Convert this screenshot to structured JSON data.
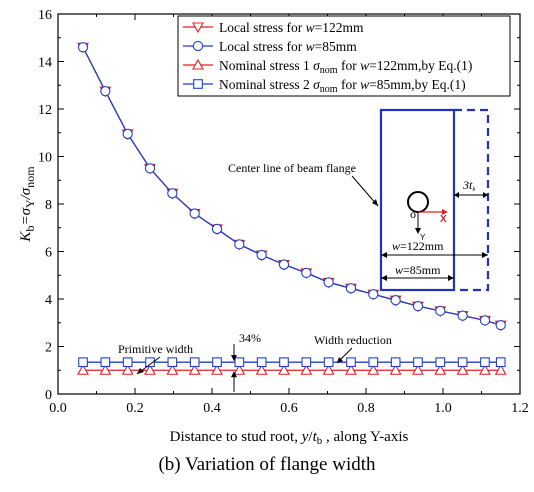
{
  "chart_data": {
    "type": "line",
    "xlabel": "Distance to stud root, y/t_b , along Y-axis",
    "ylabel": "K_b=σ_Y/σ_nom",
    "xlim": [
      0.0,
      1.2
    ],
    "ylim": [
      0,
      16
    ],
    "x_ticks": [
      "0.0",
      "0.2",
      "0.4",
      "0.6",
      "0.8",
      "1.0",
      "1.2"
    ],
    "y_ticks": [
      "0",
      "2",
      "4",
      "6",
      "8",
      "10",
      "12",
      "14",
      "16"
    ],
    "grid": false,
    "legend_position": "top-right",
    "x": [
      0.065,
      0.123,
      0.181,
      0.239,
      0.297,
      0.355,
      0.413,
      0.471,
      0.529,
      0.587,
      0.645,
      0.703,
      0.761,
      0.819,
      0.877,
      0.935,
      0.993,
      1.051,
      1.109,
      1.15
    ],
    "series": [
      {
        "name": "Local stress for w=122mm",
        "marker": "triangle-down",
        "color": "#e02020",
        "values": [
          14.6,
          12.75,
          10.95,
          9.5,
          8.45,
          7.6,
          6.95,
          6.3,
          5.85,
          5.45,
          5.1,
          4.7,
          4.45,
          4.2,
          3.95,
          3.7,
          3.5,
          3.3,
          3.1,
          2.9
        ]
      },
      {
        "name": "Local stress for w=85mm",
        "marker": "circle",
        "color": "#2040d0",
        "values": [
          14.6,
          12.75,
          10.95,
          9.5,
          8.45,
          7.6,
          6.95,
          6.3,
          5.85,
          5.45,
          5.1,
          4.7,
          4.45,
          4.2,
          3.95,
          3.7,
          3.5,
          3.3,
          3.1,
          2.9
        ]
      },
      {
        "name": "Nominal stress 1 σ_nom for w=122mm,by Eq.(1)",
        "marker": "triangle-up",
        "color": "#e02020",
        "values": [
          1.0,
          1.0,
          1.0,
          1.0,
          1.0,
          1.0,
          1.0,
          1.0,
          1.0,
          1.0,
          1.0,
          1.0,
          1.0,
          1.0,
          1.0,
          1.0,
          1.0,
          1.0,
          1.0,
          1.0
        ]
      },
      {
        "name": "Nominal stress 2 σ_nom for w=85mm,by Eq.(1)",
        "marker": "square",
        "color": "#2040d0",
        "values": [
          1.34,
          1.34,
          1.34,
          1.34,
          1.34,
          1.34,
          1.34,
          1.34,
          1.34,
          1.34,
          1.34,
          1.34,
          1.34,
          1.34,
          1.34,
          1.34,
          1.34,
          1.34,
          1.34,
          1.34
        ]
      }
    ],
    "legend": [
      {
        "pre": "Local stress for ",
        "w": "w",
        "post": "=122mm"
      },
      {
        "pre": "Local stress for ",
        "w": "w",
        "post": "=85mm"
      },
      {
        "pre": "Nominal stress 1 ",
        "sigma": "σ",
        "sub": "nom",
        "mid": " for ",
        "w": "w",
        "post": "=122mm,by Eq.(1)"
      },
      {
        "pre": "Nominal stress 2 ",
        "sigma": "σ",
        "sub": "nom",
        "mid": " for ",
        "w": "w",
        "post": "=85mm,by Eq.(1)"
      }
    ],
    "annotations": {
      "primitive_width": "Primitive width",
      "width_reduction": "Width reduction",
      "percent": "34%",
      "center_line": "Center line of beam flange",
      "w122": "=122mm",
      "w85": "=85mm",
      "w_letter": "w",
      "o_label": "o",
      "x_axis_label": "X",
      "y_axis_label": "Y",
      "tb_label": "3t",
      "tb_sub": "b"
    },
    "axis_text": {
      "xlabel_main": "Distance to stud root, ",
      "xlabel_y": "y",
      "xlabel_slash": "/",
      "xlabel_t": "t",
      "xlabel_sub": "b",
      "xlabel_rest": " , along Y-axis",
      "ylabel_K": "K",
      "ylabel_b": "b",
      "ylabel_eq": "=σ",
      "ylabel_Y": "Y",
      "ylabel_div": "/σ",
      "ylabel_nom": "nom"
    }
  },
  "caption": "(b) Variation of flange width"
}
